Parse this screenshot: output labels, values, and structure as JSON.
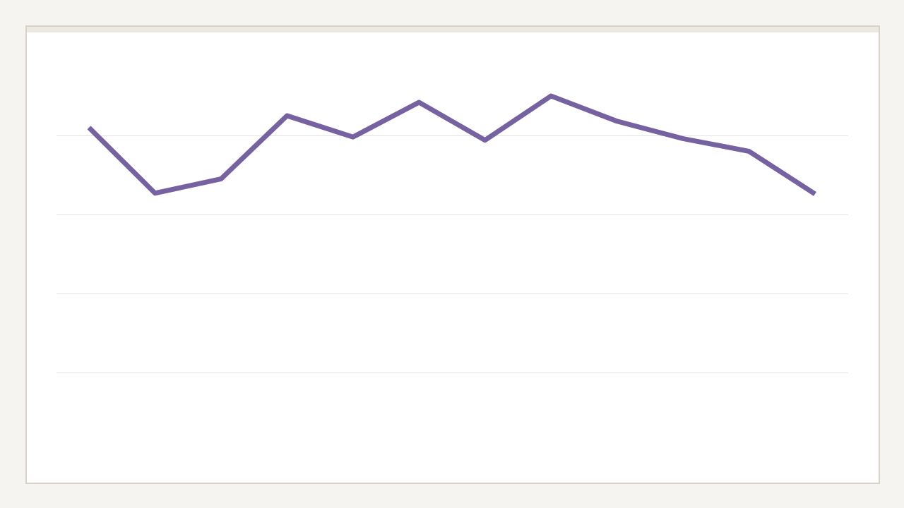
{
  "colors": {
    "page_background": "#f5f4f0",
    "card_background": "#ffffff",
    "card_border": "#d8d3c9",
    "card_topbar": "#ece9e1",
    "gridline": "#e2e2e2",
    "series_line": "#7662a0"
  },
  "chart_data": {
    "type": "line",
    "grid": true,
    "legend": "none",
    "ylim": [
      0,
      5
    ],
    "gridline_values": [
      1,
      2,
      3,
      4
    ],
    "series": [
      {
        "values": [
          4.1,
          3.27,
          3.45,
          4.25,
          3.98,
          4.42,
          3.94,
          4.5,
          4.18,
          3.96,
          3.8,
          3.26
        ]
      }
    ]
  }
}
